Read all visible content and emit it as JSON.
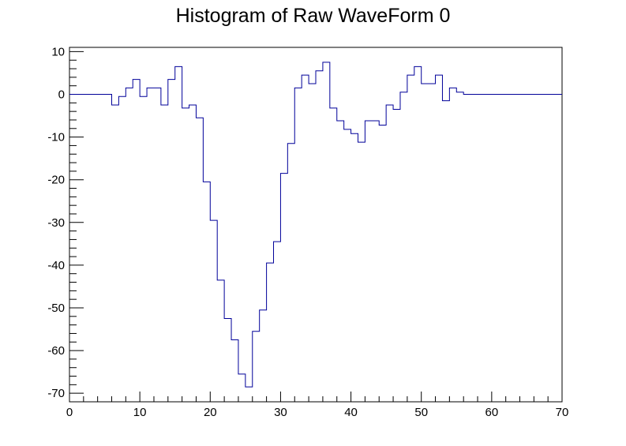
{
  "chart_data": {
    "type": "line",
    "title": "Histogram of Raw WaveForm 0",
    "xlabel": "",
    "ylabel": "",
    "xlim": [
      0,
      70
    ],
    "ylim": [
      -72,
      11
    ],
    "grid": false,
    "x_ticks": [
      0,
      10,
      20,
      30,
      40,
      50,
      60,
      70
    ],
    "y_ticks": [
      10,
      0,
      -10,
      -20,
      -30,
      -40,
      -50,
      -60,
      -70
    ],
    "bin_width": 1,
    "series": [
      {
        "color": "#000099",
        "x": [
          0,
          1,
          2,
          3,
          4,
          5,
          6,
          7,
          8,
          9,
          10,
          11,
          12,
          13,
          14,
          15,
          16,
          17,
          18,
          19,
          20,
          21,
          22,
          23,
          24,
          25,
          26,
          27,
          28,
          29,
          30,
          31,
          32,
          33,
          34,
          35,
          36,
          37,
          38,
          39,
          40,
          41,
          42,
          43,
          44,
          45,
          46,
          47,
          48,
          49,
          50,
          51,
          52,
          53,
          54,
          55,
          56,
          57,
          58,
          59,
          60,
          61,
          62,
          63,
          64,
          65,
          66,
          67,
          68,
          69
        ],
        "values": [
          0,
          0,
          0,
          0,
          0,
          0,
          -2.5,
          -0.5,
          1.5,
          3.5,
          -0.5,
          1.5,
          1.5,
          -2.5,
          3.5,
          6.5,
          -3.2,
          -2.5,
          -5.5,
          -20.5,
          -29.5,
          -43.5,
          -52.5,
          -57.5,
          -65.5,
          -68.5,
          -55.5,
          -50.5,
          -39.5,
          -34.5,
          -18.5,
          -11.5,
          1.5,
          4.5,
          2.5,
          5.5,
          7.5,
          -3.2,
          -6.2,
          -8.2,
          -9.2,
          -11.2,
          -6.2,
          -6.2,
          -7.2,
          -2.5,
          -3.5,
          0.5,
          4.5,
          6.5,
          2.5,
          2.5,
          4.5,
          -1.5,
          1.5,
          0.5,
          0,
          0,
          0,
          0,
          0,
          0,
          0,
          0,
          0,
          0,
          0,
          0,
          0,
          0
        ]
      }
    ]
  }
}
